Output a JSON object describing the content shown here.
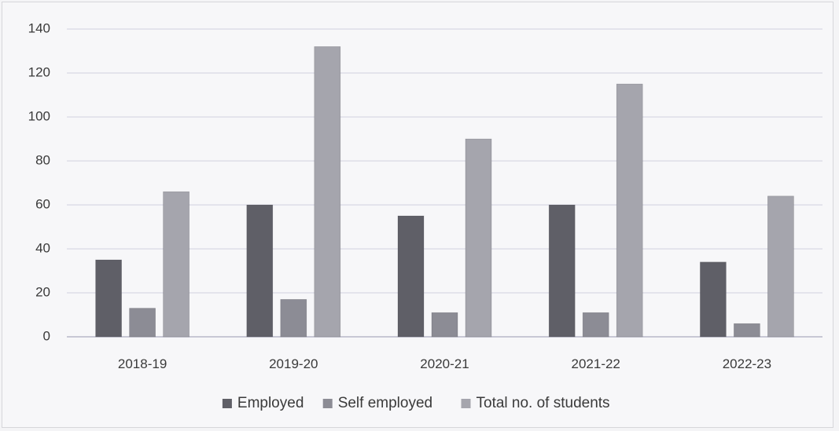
{
  "chart_data": {
    "type": "bar",
    "categories": [
      "2018-19",
      "2019-20",
      "2020-21",
      "2021-22",
      "2022-23"
    ],
    "series": [
      {
        "name": "Employed",
        "values": [
          35,
          60,
          55,
          60,
          34
        ],
        "color": "#5f5f67"
      },
      {
        "name": "Self employed",
        "values": [
          13,
          17,
          11,
          11,
          6
        ],
        "color": "#8c8c95"
      },
      {
        "name": "Total no. of students",
        "values": [
          66,
          132,
          90,
          115,
          64
        ],
        "color": "#a5a5ad"
      }
    ],
    "y_ticks": [
      0,
      20,
      40,
      60,
      80,
      100,
      120,
      140
    ],
    "ylim": [
      0,
      140
    ],
    "title": "",
    "xlabel": "",
    "ylabel": "",
    "grid": true,
    "legend_position": "bottom"
  }
}
